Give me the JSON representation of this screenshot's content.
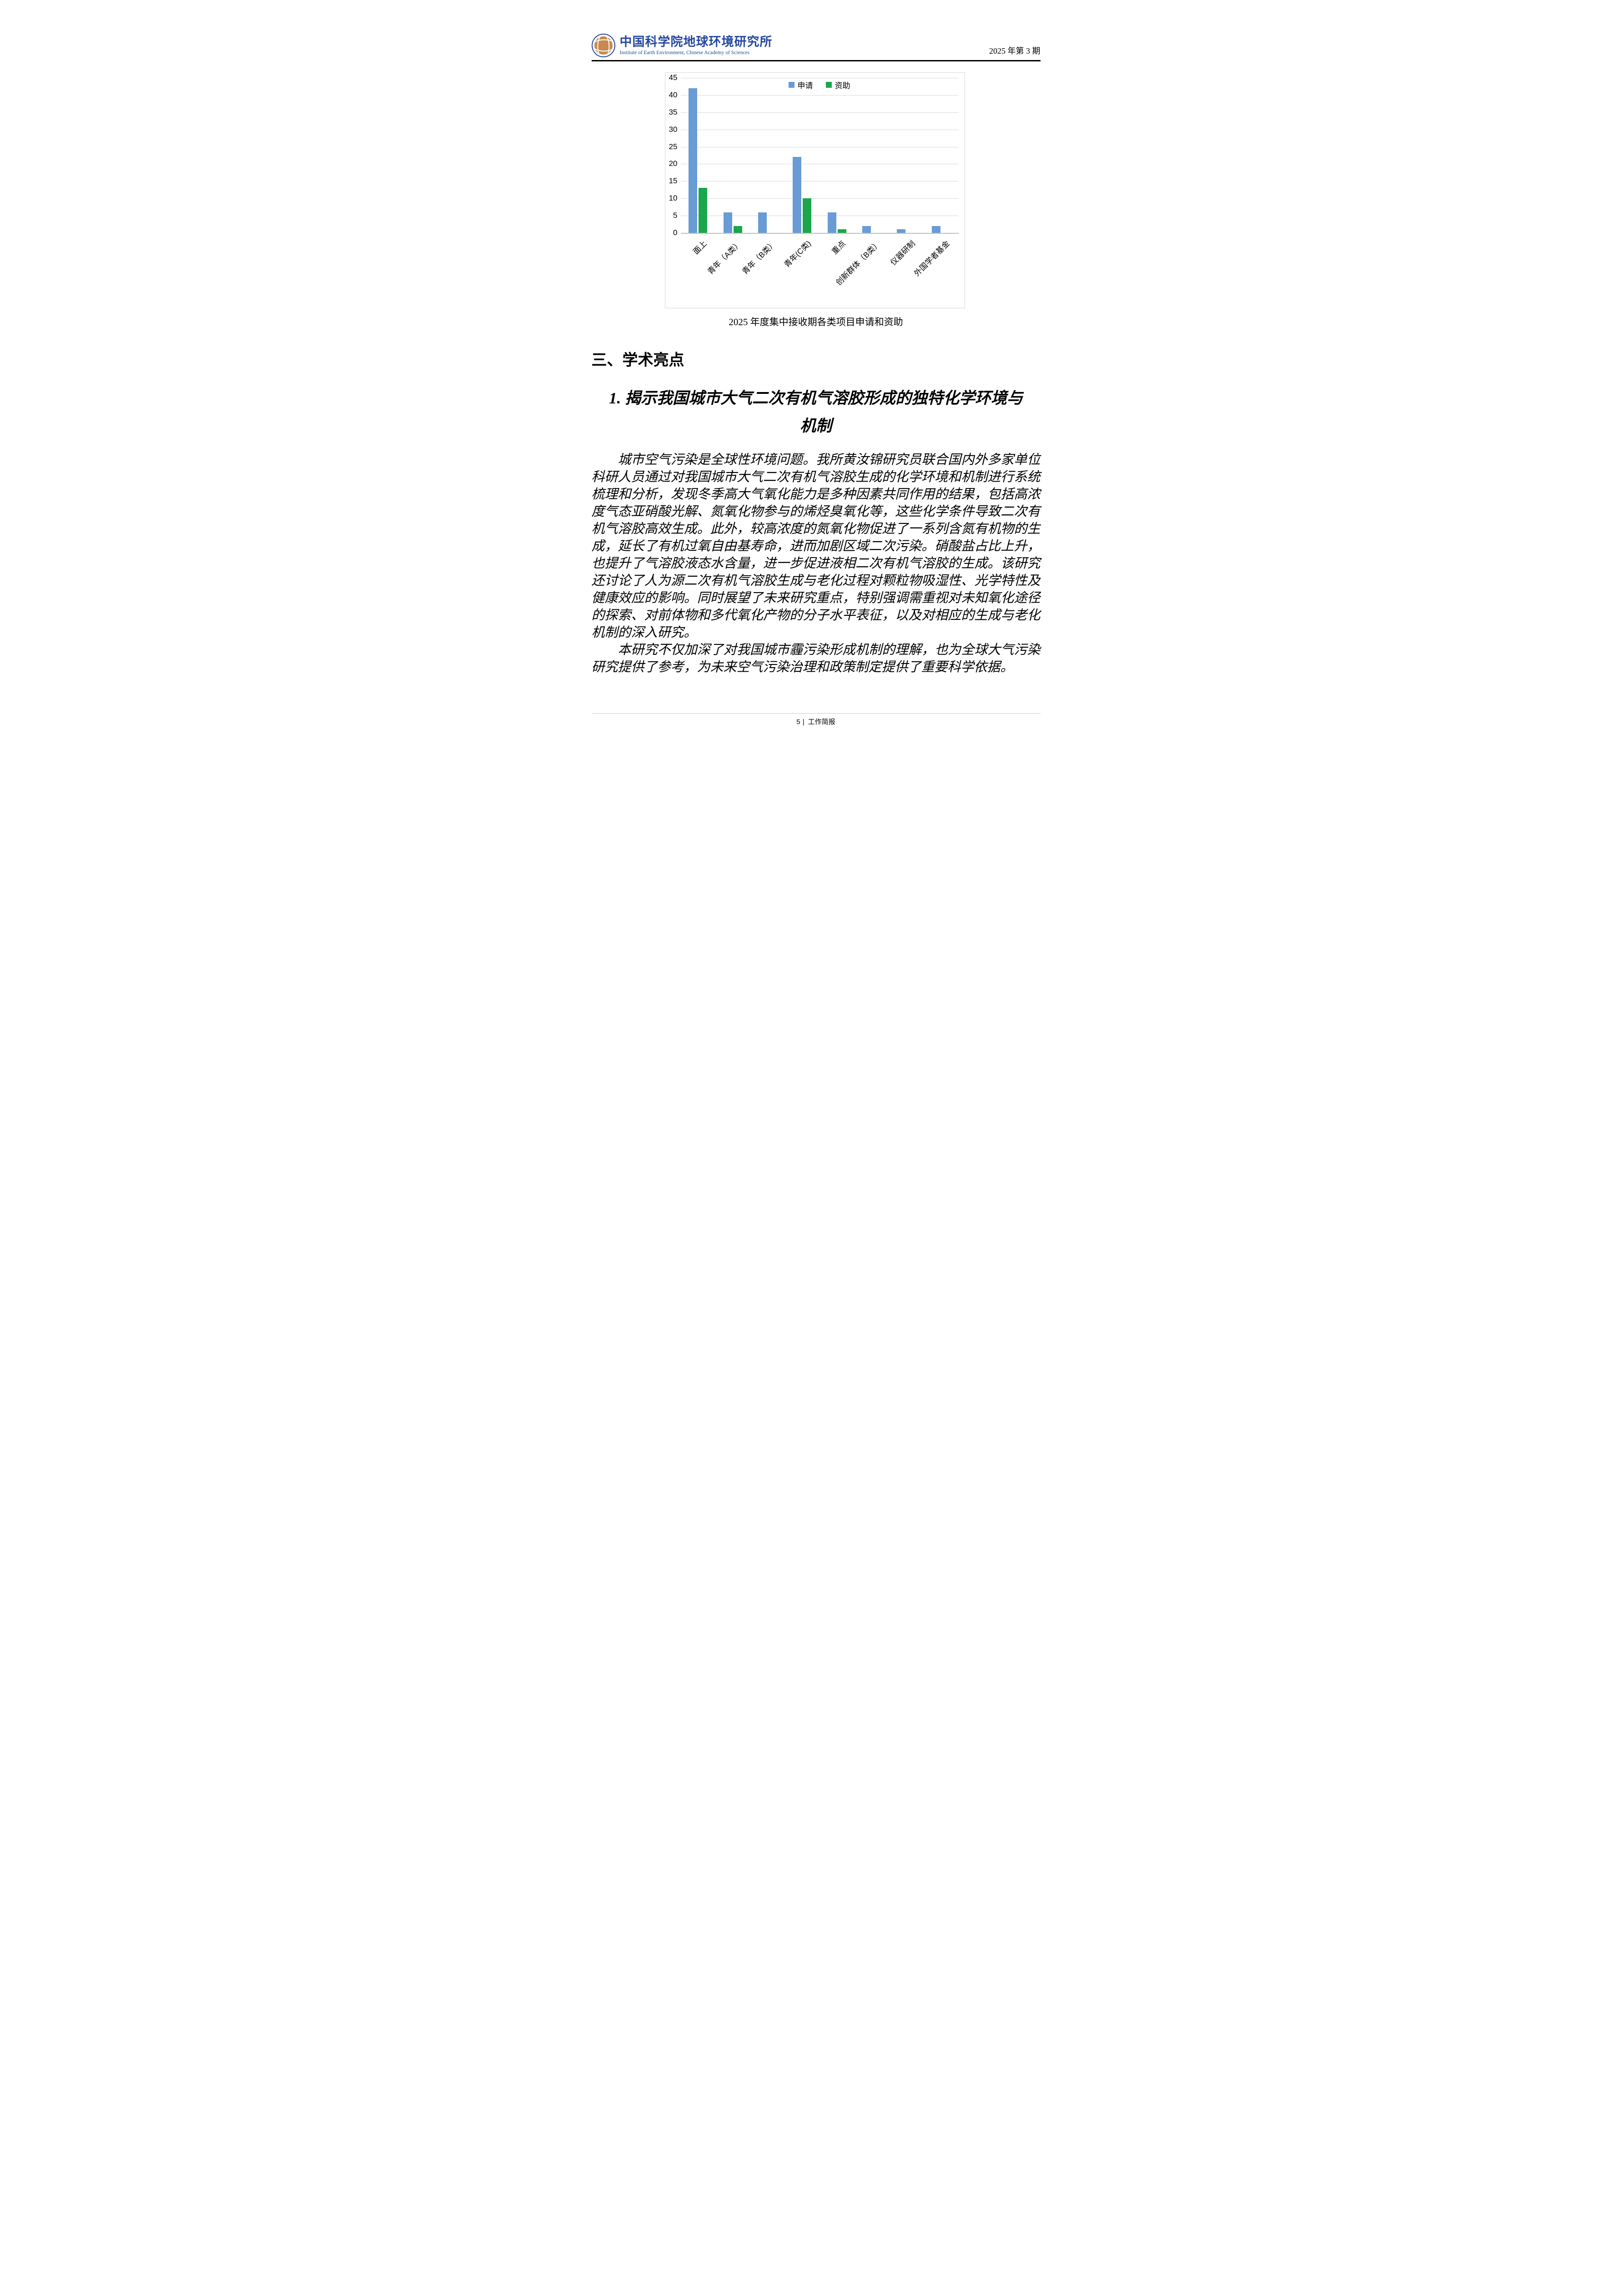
{
  "page": {
    "header": {
      "logo": {
        "org_cn": "中国科学院地球环境研究所",
        "org_en": "Institute of Earth Environment, Chinese Academy of Sciences"
      },
      "issue": "2025 年第 3 期"
    },
    "section_heading": "三、学术亮点",
    "article_title": {
      "line1": "1. 揭示我国城市大气二次有机气溶胶形成的独特化学环境与",
      "line2": "机制"
    },
    "paragraphs": [
      "城市空气污染是全球性环境问题。我所黄汝锦研究员联合国内外多家单位科研人员通过对我国城市大气二次有机气溶胶生成的化学环境和机制进行系统梳理和分析，发现冬季高大气氧化能力是多种因素共同作用的结果，包括高浓度气态亚硝酸光解、氮氧化物参与的烯烃臭氧化等，这些化学条件导致二次有机气溶胶高效生成。此外，较高浓度的氮氧化物促进了一系列含氮有机物的生成，延长了有机过氧自由基寿命，进而加剧区域二次污染。硝酸盐占比上升，也提升了气溶胶液态水含量，进一步促进液相二次有机气溶胶的生成。该研究还讨论了人为源二次有机气溶胶生成与老化过程对颗粒物吸湿性、光学特性及健康效应的影响。同时展望了未来研究重点，特别强调需重视对未知氧化途径的探索、对前体物和多代氧化产物的分子水平表征，以及对相应的生成与老化机制的深入研究。",
      "本研究不仅加深了对我国城市霾污染形成机制的理解，也为全球大气污染研究提供了参考，为未来空气污染治理和政策制定提供了重要科学依据。"
    ],
    "footer": {
      "page_number": "5",
      "separator": "|",
      "label": "工作简报"
    },
    "colors": {
      "brand_blue": "#24479F"
    }
  },
  "chart_data": {
    "type": "bar",
    "caption": "2025 年度集中接收期各类项目申请和资助",
    "categories": [
      "面上",
      "青年（A类）",
      "青年（B类）",
      "青年(C类)",
      "重点",
      "创新群体（B类）",
      "仪器研制",
      "外国学者基金"
    ],
    "series": [
      {
        "name": "申请",
        "color": "#699BD5",
        "values": [
          42,
          6,
          6,
          22,
          6,
          2,
          1,
          2
        ]
      },
      {
        "name": "资助",
        "color": "#1CA64A",
        "values": [
          13,
          2,
          0,
          10,
          1,
          0,
          0,
          0
        ]
      }
    ],
    "xlabel": "",
    "ylabel": "",
    "ylim": [
      0,
      45
    ],
    "ytick_step": 5,
    "grid": true,
    "legend_position": "top-center",
    "gridline_color": "#D9D9D9",
    "baseline_color": "#BFBFBF"
  }
}
